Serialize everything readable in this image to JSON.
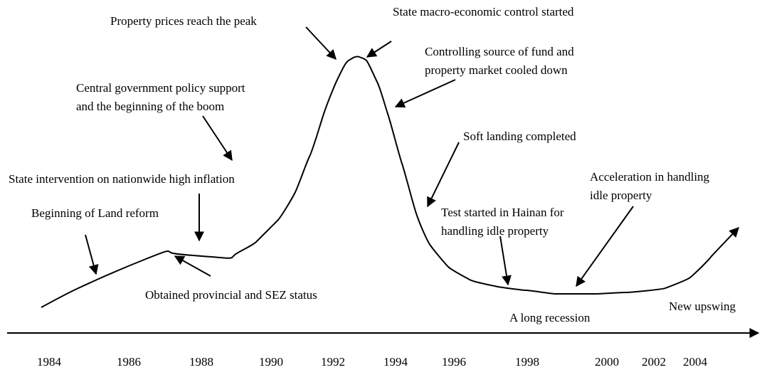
{
  "annotations": {
    "peak": [
      "Property prices reach the peak"
    ],
    "control": [
      "State macro-economic control started"
    ],
    "cooled": [
      "Controlling source of fund and",
      "property market cooled down"
    ],
    "boom": [
      "Central government policy support",
      "and the beginning of the boom"
    ],
    "soft_landing": [
      "Soft landing completed"
    ],
    "intervention": [
      "State intervention on nationwide high inflation"
    ],
    "acceleration": [
      "Acceleration in handling",
      "idle property"
    ],
    "land_reform": [
      "Beginning of Land reform"
    ],
    "hainan": [
      "Test started in Hainan for",
      "handling idle property"
    ],
    "sez": [
      "Obtained provincial and SEZ status"
    ],
    "recession": [
      "A long recession"
    ],
    "upswing": [
      "New upswing"
    ]
  },
  "years": [
    "1984",
    "1986",
    "1988",
    "1990",
    "1992",
    "1994",
    "1996",
    "1998",
    "2000",
    "2002",
    "2004"
  ]
}
